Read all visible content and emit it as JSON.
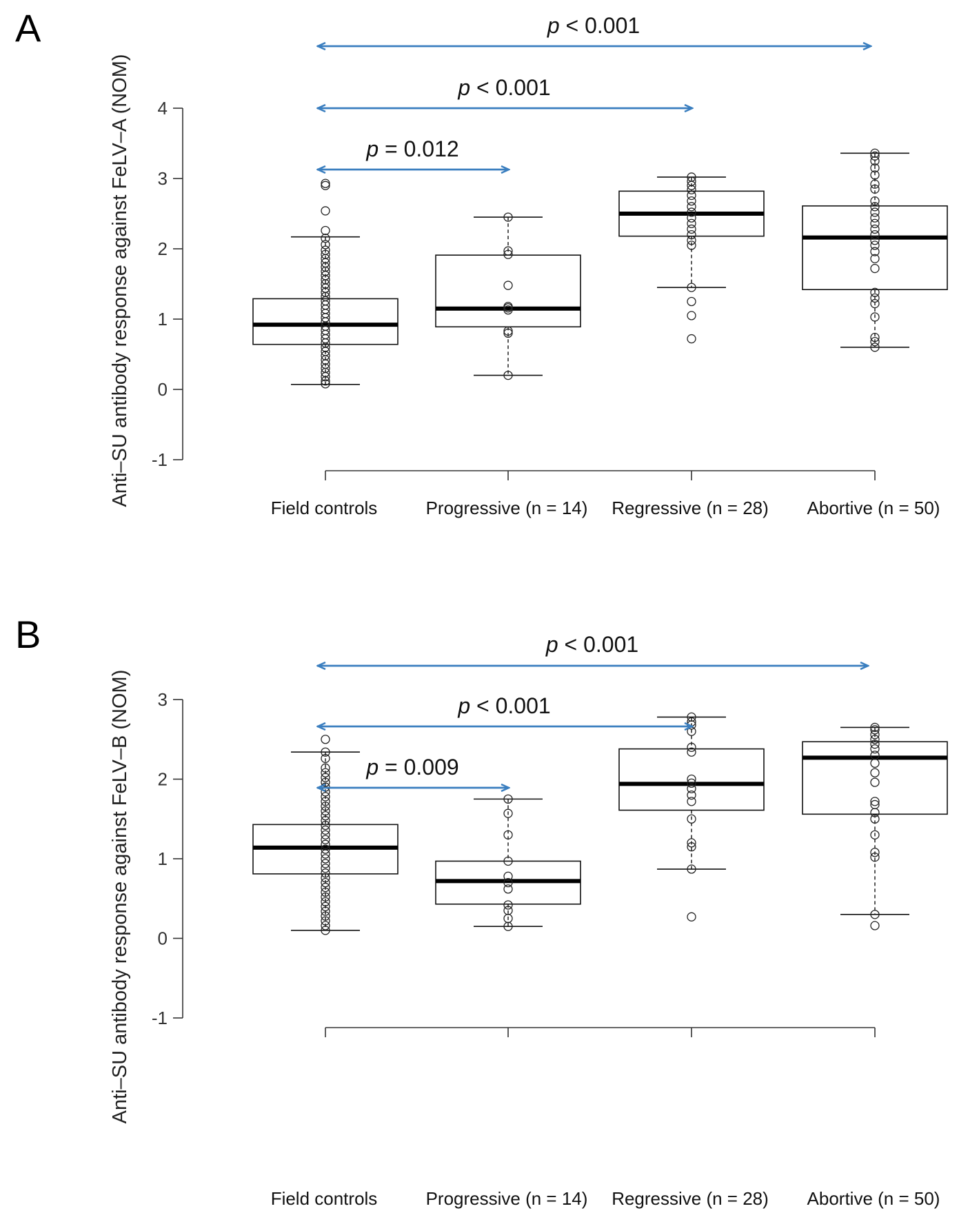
{
  "chart_data": [
    {
      "type": "box",
      "panel_label": "A",
      "ylabel": "Anti–SU antibody response against FeLV–A (NOM)",
      "ylim": [
        -1,
        4
      ],
      "yticks": [
        -1,
        0,
        1,
        2,
        3,
        4
      ],
      "categories": [
        "Field controls",
        "Progressive (n = 14)",
        "Regressive (n = 28)",
        "Abortive (n = 50)"
      ],
      "boxes": [
        {
          "whisker_low": 0.07,
          "q1": 0.64,
          "median": 0.92,
          "q3": 1.29,
          "whisker_high": 2.17,
          "points": [
            0.08,
            0.12,
            0.18,
            0.24,
            0.3,
            0.36,
            0.42,
            0.48,
            0.54,
            0.6,
            0.66,
            0.72,
            0.78,
            0.84,
            0.9,
            0.96,
            1.02,
            1.08,
            1.14,
            1.2,
            1.26,
            1.32,
            1.38,
            1.44,
            1.5,
            1.56,
            1.62,
            1.68,
            1.74,
            1.8,
            1.86,
            1.92,
            1.98,
            2.06,
            2.15,
            2.26,
            2.54,
            2.9,
            2.93
          ]
        },
        {
          "whisker_low": 0.2,
          "q1": 0.89,
          "median": 1.15,
          "q3": 1.91,
          "whisker_high": 2.45,
          "points": [
            0.2,
            0.8,
            0.83,
            1.13,
            1.16,
            1.18,
            1.48,
            1.92,
            1.97,
            2.45
          ]
        },
        {
          "whisker_low": 1.45,
          "q1": 2.18,
          "median": 2.5,
          "q3": 2.82,
          "whisker_high": 3.02,
          "points": [
            0.72,
            1.05,
            1.25,
            1.45,
            2.05,
            2.12,
            2.2,
            2.28,
            2.36,
            2.44,
            2.52,
            2.6,
            2.68,
            2.76,
            2.84,
            2.9,
            2.96,
            3.02
          ]
        },
        {
          "whisker_low": 0.6,
          "q1": 1.42,
          "median": 2.16,
          "q3": 2.61,
          "whisker_high": 3.36,
          "points": [
            0.6,
            0.68,
            0.74,
            1.03,
            1.22,
            1.3,
            1.38,
            1.72,
            1.86,
            1.96,
            2.05,
            2.12,
            2.2,
            2.28,
            2.36,
            2.44,
            2.52,
            2.6,
            2.68,
            2.85,
            2.92,
            3.05,
            3.15,
            3.25,
            3.32,
            3.36
          ]
        }
      ],
      "comparisons": [
        {
          "label": "p < 0.001",
          "p_text": "p",
          "rest_text": " < 0.001",
          "from": 0,
          "to": 3
        },
        {
          "label": "p < 0.001",
          "p_text": "p",
          "rest_text": " < 0.001",
          "from": 0,
          "to": 2
        },
        {
          "label": "p = 0.012",
          "p_text": "p",
          "rest_text": " = 0.012",
          "from": 0,
          "to": 1
        }
      ],
      "arrow_color": "#3a7ebf"
    },
    {
      "type": "box",
      "panel_label": "B",
      "ylabel": "Anti–SU antibody response against FeLV–B (NOM)",
      "ylim": [
        -1,
        3
      ],
      "yticks": [
        -1,
        0,
        1,
        2,
        3
      ],
      "categories": [
        "Field controls",
        "Progressive (n = 14)",
        "Regressive (n = 28)",
        "Abortive (n = 50)"
      ],
      "boxes": [
        {
          "whisker_low": 0.1,
          "q1": 0.81,
          "median": 1.14,
          "q3": 1.43,
          "whisker_high": 2.34,
          "points": [
            0.1,
            0.16,
            0.22,
            0.28,
            0.34,
            0.4,
            0.46,
            0.52,
            0.58,
            0.64,
            0.7,
            0.76,
            0.82,
            0.88,
            0.94,
            1.0,
            1.06,
            1.12,
            1.18,
            1.24,
            1.3,
            1.36,
            1.42,
            1.48,
            1.54,
            1.6,
            1.66,
            1.72,
            1.78,
            1.84,
            1.9,
            1.96,
            2.02,
            2.08,
            2.14,
            2.26,
            2.34,
            2.5
          ]
        },
        {
          "whisker_low": 0.15,
          "q1": 0.43,
          "median": 0.72,
          "q3": 0.97,
          "whisker_high": 1.75,
          "points": [
            0.15,
            0.25,
            0.35,
            0.42,
            0.62,
            0.7,
            0.78,
            0.97,
            1.3,
            1.57,
            1.75
          ]
        },
        {
          "whisker_low": 0.87,
          "q1": 1.61,
          "median": 1.94,
          "q3": 2.38,
          "whisker_high": 2.78,
          "points": [
            0.27,
            0.87,
            1.15,
            1.2,
            1.5,
            1.72,
            1.8,
            1.88,
            1.95,
            2.0,
            2.34,
            2.4,
            2.6,
            2.68,
            2.72,
            2.78
          ]
        },
        {
          "whisker_low": 0.3,
          "q1": 1.56,
          "median": 2.27,
          "q3": 2.47,
          "whisker_high": 2.65,
          "points": [
            0.16,
            0.3,
            1.02,
            1.08,
            1.3,
            1.5,
            1.58,
            1.68,
            1.72,
            1.96,
            2.08,
            2.2,
            2.3,
            2.38,
            2.44,
            2.5,
            2.56,
            2.62,
            2.65
          ]
        }
      ],
      "comparisons": [
        {
          "label": "p < 0.001",
          "p_text": "p",
          "rest_text": " < 0.001",
          "from": 0,
          "to": 3
        },
        {
          "label": "p < 0.001",
          "p_text": "p",
          "rest_text": " < 0.001",
          "from": 0,
          "to": 2
        },
        {
          "label": "p = 0.009",
          "p_text": "p",
          "rest_text": " = 0.009",
          "from": 0,
          "to": 1
        }
      ],
      "arrow_color": "#3a7ebf"
    }
  ]
}
